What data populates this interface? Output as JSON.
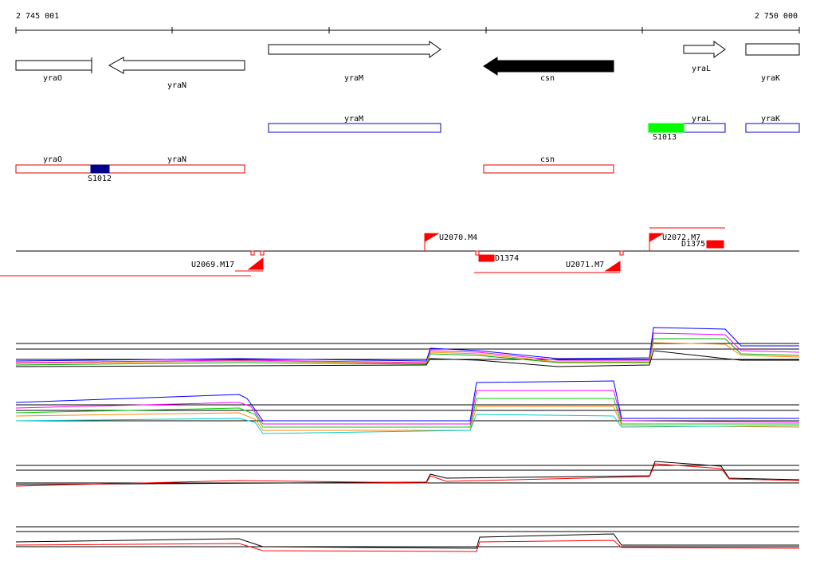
{
  "ruler": {
    "start": "2 745 001",
    "end": "2 750 000"
  },
  "genes": [
    "yraO",
    "yraN",
    "yraM",
    "csn",
    "yraL",
    "yraK"
  ],
  "transcripts": {
    "genes": [
      "yraM",
      "yraL",
      "yraK"
    ],
    "site": "S1013"
  },
  "operons": {
    "genes": [
      "yraO",
      "yraN",
      "csn"
    ],
    "site": "S1012"
  },
  "features": [
    "U2070.M4",
    "U2072.M7",
    "D1375",
    "D1374",
    "U2071.M7",
    "U2069.M17"
  ]
}
